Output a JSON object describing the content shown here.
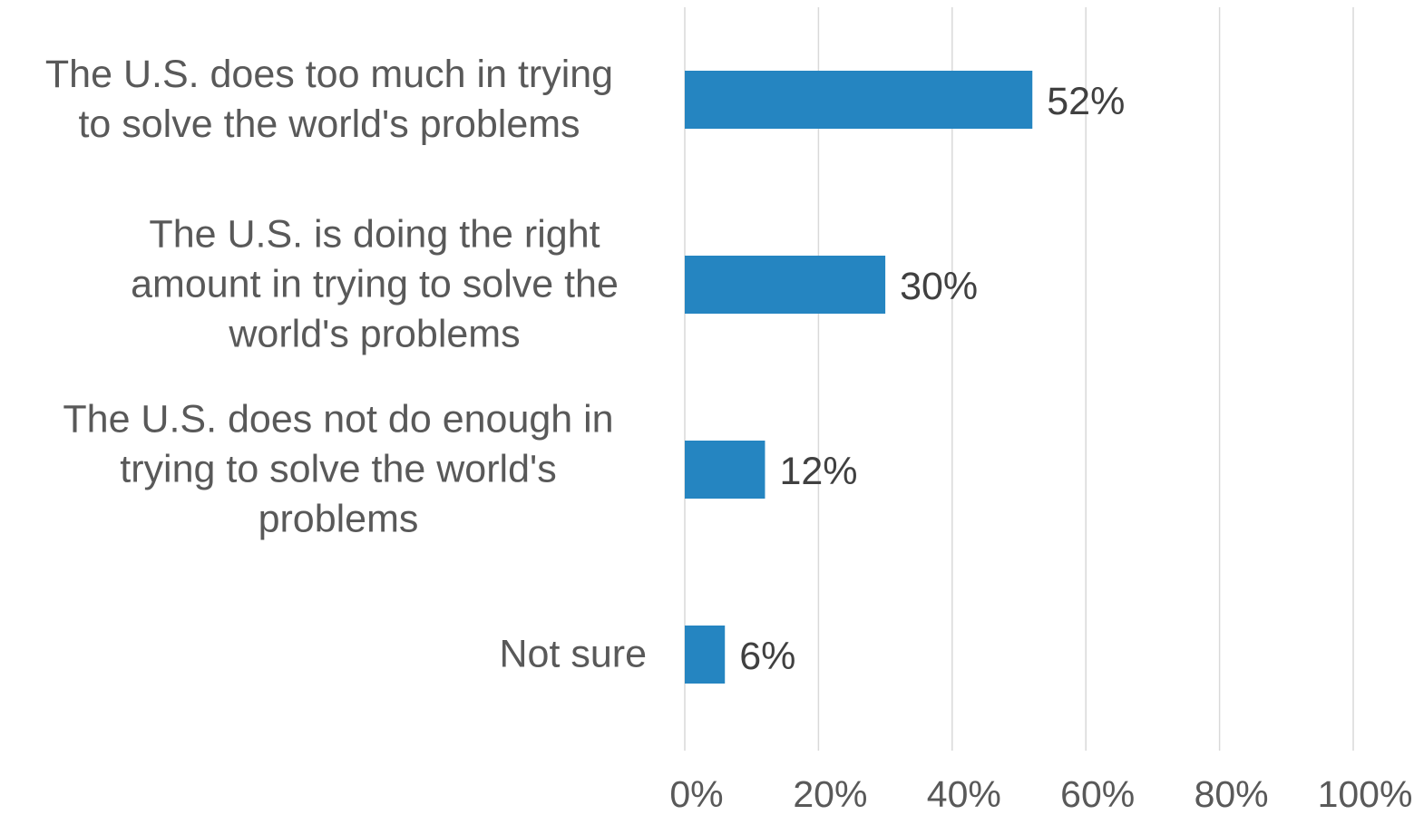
{
  "colors": {
    "bar": "#2585C1",
    "grid": "#D9D9D9",
    "label_text": "#595959",
    "value_text": "#404040"
  },
  "chart_data": {
    "type": "bar",
    "orientation": "horizontal",
    "categories": [
      "The U.S. does too much in trying\nto solve the world's problems",
      "The U.S. is doing the right\namount in trying to solve the\nworld's problems",
      "The U.S. does not do enough in\ntrying to solve the world's\nproblems",
      "Not sure"
    ],
    "values": [
      52,
      30,
      12,
      6
    ],
    "value_labels": [
      "52%",
      "30%",
      "12%",
      "6%"
    ],
    "xlim": [
      0,
      100
    ],
    "xticks": [
      0,
      20,
      40,
      60,
      80,
      100
    ],
    "xtick_labels": [
      "0%",
      "20%",
      "40%",
      "60%",
      "80%",
      "100%"
    ],
    "grid": "vertical",
    "legend": "none"
  }
}
